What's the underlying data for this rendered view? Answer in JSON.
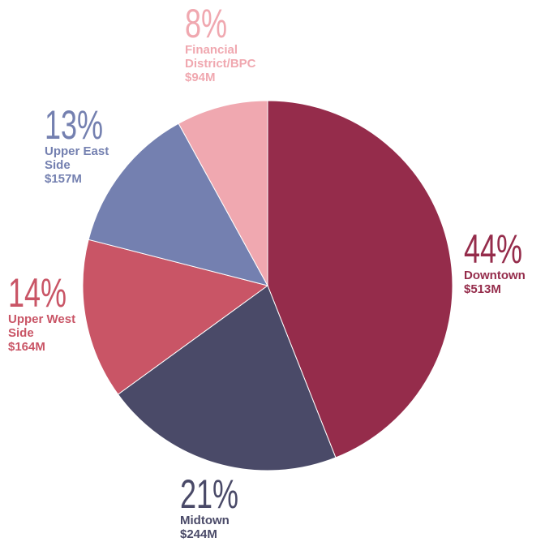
{
  "chart_data": {
    "type": "pie",
    "categories": [
      "Downtown",
      "Midtown",
      "Upper West Side",
      "Upper East Side",
      "Financial District/BPC"
    ],
    "values": [
      44,
      21,
      14,
      13,
      8
    ],
    "value_labels": [
      "44%",
      "21%",
      "14%",
      "13%",
      "8%"
    ],
    "amount_labels": [
      "$513M",
      "$244M",
      "$164M",
      "$157M",
      "$94M"
    ],
    "colors": [
      "#952c4b",
      "#4a4a68",
      "#c95566",
      "#7480b0",
      "#f0a8b0"
    ]
  }
}
